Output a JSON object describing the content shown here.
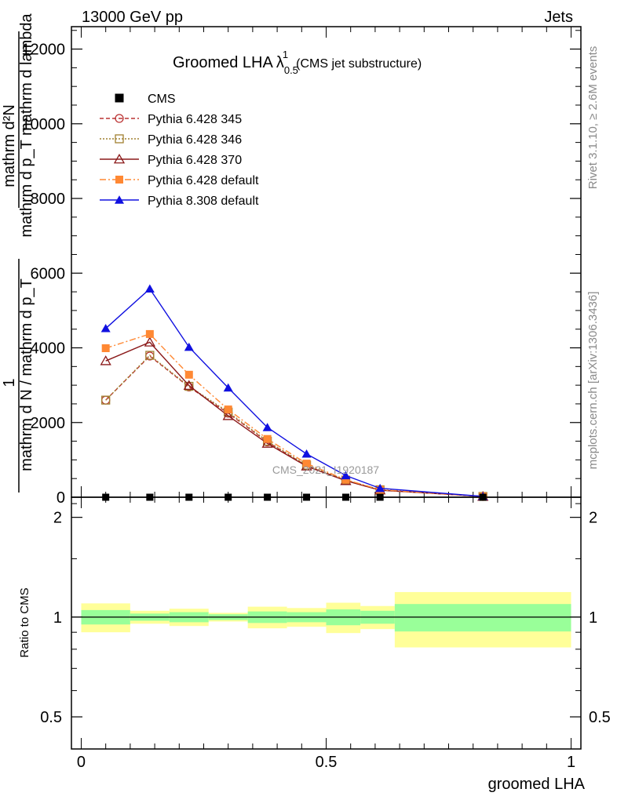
{
  "header": {
    "left": "13000 GeV pp",
    "right": "Jets"
  },
  "plot_title": {
    "main": "Groomed LHA",
    "lambda": "λ",
    "sub": "0.5",
    "sup": "1",
    "note": "(CMS jet substructure)"
  },
  "side_text": {
    "rivet": "Rivet 3.1.10, ≥ 2.6M events",
    "mcplots": "mcplots.cern.ch [arXiv:1306.3436]"
  },
  "watermark": "CMS_2021_I1920187",
  "colors": {
    "band_inner": "#99ff99",
    "band_outer": "#ffff99",
    "cms": "#000000",
    "p345": "#bb3333",
    "p346": "#a08030",
    "p370": "#8b1a1a",
    "p6def": "#ff8833",
    "p8def": "#1010e0"
  },
  "chart_data": [
    {
      "type": "line",
      "xlabel": "",
      "ylabel_numerator": "mathrm d²N",
      "ylabel_denominator": "mathrm d p_T mathrm d lambda",
      "ylabel_prefix": "1",
      "ylabel_prefix_denominator": "mathrm d N / mathrm d p_T",
      "xlim": [
        -0.02,
        1.02
      ],
      "ylim": [
        0,
        12600
      ],
      "yticks": [
        0,
        2000,
        4000,
        6000,
        8000,
        10000,
        12000
      ],
      "ytick_labels": [
        "0",
        "2000",
        "4000",
        "6000",
        "8000",
        "10000",
        "12000"
      ],
      "legend_position": "top-left",
      "series": [
        {
          "name": "CMS",
          "marker": "square-filled",
          "style": "none",
          "x": [
            0.05,
            0.14,
            0.22,
            0.3,
            0.38,
            0.46,
            0.54,
            0.61,
            0.82
          ],
          "y": [
            0,
            0,
            0,
            0,
            0,
            0,
            0,
            0,
            0
          ]
        },
        {
          "name": "Pythia 6.428 345",
          "marker": "circle-open",
          "style": "dashed",
          "x": [
            0.05,
            0.14,
            0.22,
            0.3,
            0.38,
            0.46,
            0.54,
            0.61,
            0.82
          ],
          "y": [
            2600,
            3780,
            2950,
            2250,
            1480,
            840,
            450,
            190,
            20
          ]
        },
        {
          "name": "Pythia 6.428 346",
          "marker": "square-open",
          "style": "dotted",
          "x": [
            0.05,
            0.14,
            0.22,
            0.3,
            0.38,
            0.46,
            0.54,
            0.61,
            0.82
          ],
          "y": [
            2600,
            3800,
            2970,
            2280,
            1500,
            860,
            460,
            200,
            20
          ]
        },
        {
          "name": "Pythia 6.428 370",
          "marker": "triangle-open",
          "style": "solid",
          "x": [
            0.05,
            0.14,
            0.22,
            0.3,
            0.38,
            0.46,
            0.54,
            0.61,
            0.82
          ],
          "y": [
            3650,
            4150,
            2990,
            2180,
            1440,
            830,
            440,
            190,
            20
          ]
        },
        {
          "name": "Pythia 6.428 default",
          "marker": "square-filled",
          "style": "dashdot",
          "x": [
            0.05,
            0.14,
            0.22,
            0.3,
            0.38,
            0.46,
            0.54,
            0.61,
            0.82
          ],
          "y": [
            3990,
            4370,
            3280,
            2350,
            1560,
            900,
            470,
            200,
            20
          ]
        },
        {
          "name": "Pythia 8.308 default",
          "marker": "triangle-filled",
          "style": "solid",
          "x": [
            0.05,
            0.14,
            0.22,
            0.3,
            0.38,
            0.46,
            0.54,
            0.61,
            0.82
          ],
          "y": [
            4520,
            5580,
            4020,
            2930,
            1870,
            1160,
            580,
            240,
            20
          ]
        }
      ]
    },
    {
      "type": "area",
      "title": "",
      "xlabel": "groomed LHA",
      "ylabel": "Ratio to CMS",
      "xlim": [
        -0.02,
        1.02
      ],
      "ylim": [
        0.4,
        2.3
      ],
      "scale": "log",
      "yticks": [
        0.5,
        1,
        2
      ],
      "ytick_labels": [
        "0.5",
        "1",
        "2"
      ],
      "xticks": [
        0,
        0.5,
        1
      ],
      "xtick_labels": [
        "0",
        "0.5",
        "1"
      ],
      "bins": [
        {
          "lo": 0.0,
          "hi": 0.1,
          "inner": [
            0.95,
            1.05
          ],
          "outer": [
            0.9,
            1.1
          ]
        },
        {
          "lo": 0.1,
          "hi": 0.18,
          "inner": [
            0.975,
            1.025
          ],
          "outer": [
            0.955,
            1.045
          ]
        },
        {
          "lo": 0.18,
          "hi": 0.26,
          "inner": [
            0.965,
            1.035
          ],
          "outer": [
            0.94,
            1.06
          ]
        },
        {
          "lo": 0.26,
          "hi": 0.34,
          "inner": [
            0.98,
            1.02
          ],
          "outer": [
            0.97,
            1.03
          ]
        },
        {
          "lo": 0.34,
          "hi": 0.42,
          "inner": [
            0.96,
            1.04
          ],
          "outer": [
            0.925,
            1.075
          ]
        },
        {
          "lo": 0.42,
          "hi": 0.5,
          "inner": [
            0.965,
            1.035
          ],
          "outer": [
            0.935,
            1.065
          ]
        },
        {
          "lo": 0.5,
          "hi": 0.57,
          "inner": [
            0.945,
            1.055
          ],
          "outer": [
            0.895,
            1.105
          ]
        },
        {
          "lo": 0.57,
          "hi": 0.64,
          "inner": [
            0.955,
            1.045
          ],
          "outer": [
            0.92,
            1.08
          ]
        },
        {
          "lo": 0.64,
          "hi": 1.0,
          "inner": [
            0.905,
            1.095
          ],
          "outer": [
            0.81,
            1.19
          ]
        }
      ]
    }
  ]
}
